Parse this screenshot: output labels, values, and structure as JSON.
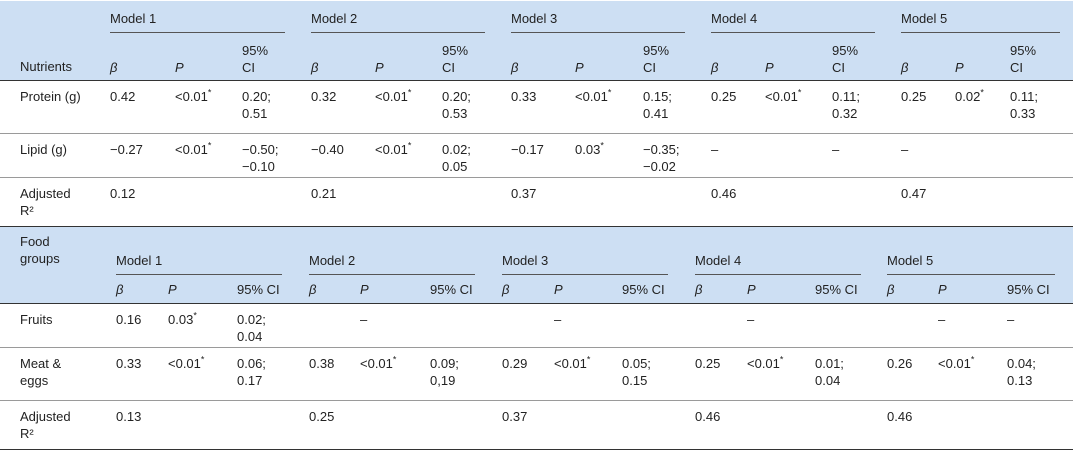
{
  "table": {
    "sections": [
      {
        "label": "Nutrients",
        "models": [
          "Model 1",
          "Model 2",
          "Model 3",
          "Model 4",
          "Model 5"
        ],
        "columns": [
          "β",
          "P",
          "95% CI"
        ],
        "rows": [
          {
            "label": "Protein (g)",
            "cells": [
              "0.42",
              "<0.01*",
              "0.20; 0.51",
              "0.32",
              "<0.01*",
              "0.20; 0.53",
              "0.33",
              "<0.01*",
              "0.15; 0.41",
              "0.25",
              "<0.01*",
              "0.11; 0.32",
              "0.25",
              "0.02*",
              "0.11; 0.33"
            ]
          },
          {
            "label": "Lipid (g)",
            "cells": [
              "−0.27",
              "<0.01*",
              "−0.50; −0.10",
              "−0.40",
              "<0.01*",
              "0.02; 0.05",
              "−0.17",
              "0.03*",
              "−0.35; −0.02",
              "–",
              null,
              "–",
              "–",
              null,
              null
            ]
          },
          {
            "label": "Adjusted R²",
            "cells": [
              "0.12",
              null,
              null,
              "0.21",
              null,
              null,
              "0.37",
              null,
              null,
              "0.46",
              null,
              null,
              "0.47",
              null,
              null
            ]
          }
        ]
      },
      {
        "label": "Food groups",
        "models": [
          "Model 1",
          "Model 2",
          "Model 3",
          "Model 4",
          "Model 5"
        ],
        "columns": [
          "β",
          "P",
          "95% CI"
        ],
        "rows": [
          {
            "label": "Fruits",
            "cells": [
              "0.16",
              "0.03*",
              "0.02; 0.04",
              null,
              "–",
              null,
              null,
              "–",
              null,
              null,
              "–",
              null,
              null,
              "–",
              "–"
            ]
          },
          {
            "label": "Meat & eggs",
            "cells": [
              "0.33",
              "<0.01*",
              "0.06; 0.17",
              "0.38",
              "<0.01*",
              "0.09; 0,19",
              "0.29",
              "<0.01*",
              "0.05; 0.15",
              "0.25",
              "<0.01*",
              "0.01; 0.04",
              "0.26",
              "<0.01*",
              "0.04; 0.13"
            ]
          },
          {
            "label": "Adjusted R²",
            "cells": [
              "0.13",
              null,
              null,
              "0.25",
              null,
              null,
              "0.37",
              null,
              null,
              "0.46",
              null,
              null,
              "0.46",
              null,
              null
            ]
          }
        ]
      }
    ]
  }
}
